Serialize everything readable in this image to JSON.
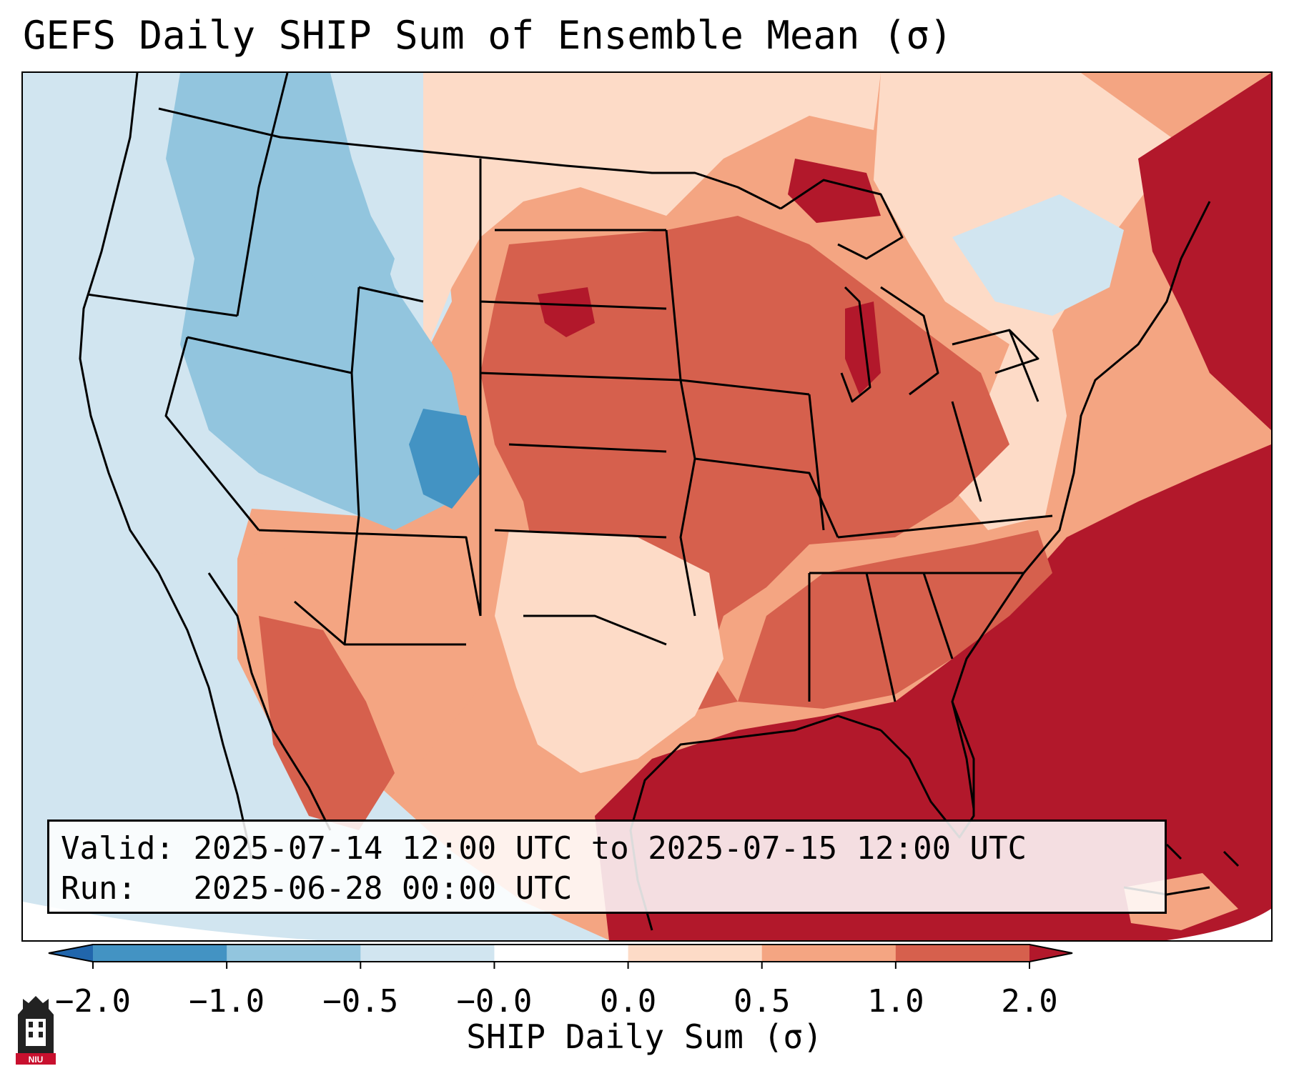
{
  "title": "GEFS Daily SHIP Sum of Ensemble Mean (σ)",
  "info": {
    "valid_label": "Valid:",
    "valid_value": "2025-07-14 12:00 UTC to 2025-07-15 12:00 UTC",
    "run_label": "Run:",
    "run_value": "2025-06-28 00:00 UTC"
  },
  "colorbar": {
    "label": "SHIP Daily Sum (σ)",
    "ticks": [
      "−2.0",
      "−1.0",
      "−0.5",
      "−0.0",
      "0.0",
      "0.5",
      "1.0",
      "2.0"
    ],
    "colors": [
      "#4393c3",
      "#92c5de",
      "#d1e5f0",
      "#ffffff",
      "#fddbc7",
      "#f4a582",
      "#d6604d",
      "#b2182b"
    ],
    "extend_low_color": "#2166ac",
    "extend_high_color": "#b2182b"
  },
  "map": {
    "projection_background": "#d1e5f0",
    "coastline_color": "#000000"
  },
  "logo": {
    "text": "NIU"
  }
}
